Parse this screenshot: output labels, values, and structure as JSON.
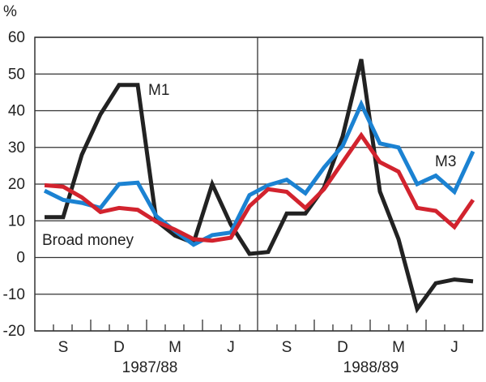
{
  "chart_data": {
    "type": "line",
    "ylabel": "%",
    "ylim": [
      -20,
      60
    ],
    "yticks": [
      60,
      50,
      40,
      30,
      20,
      10,
      0,
      -10,
      -20
    ],
    "grid": true,
    "points_per_year": 12,
    "x_tick_labels": [
      {
        "index": 1,
        "label": "S"
      },
      {
        "index": 4,
        "label": "D"
      },
      {
        "index": 7,
        "label": "M"
      },
      {
        "index": 10,
        "label": "J"
      },
      {
        "index": 13,
        "label": "S"
      },
      {
        "index": 16,
        "label": "D"
      },
      {
        "index": 19,
        "label": "M"
      },
      {
        "index": 22,
        "label": "J"
      }
    ],
    "year_labels": [
      "1987/88",
      "1988/89"
    ],
    "series": [
      {
        "name": "M1",
        "color": "#222222",
        "values": [
          11,
          11,
          28,
          39,
          47,
          47,
          10,
          6,
          4,
          20,
          9,
          1,
          1.5,
          12,
          12,
          19,
          33,
          54,
          18,
          5,
          -14,
          -7,
          -6,
          -6.5
        ]
      },
      {
        "name": "M3",
        "color": "#1b82d2",
        "values": [
          18.2,
          15.7,
          14.9,
          13.5,
          20,
          20.4,
          11.3,
          7.2,
          3.5,
          6.1,
          6.8,
          17,
          19.7,
          21.2,
          17.5,
          24.5,
          30.4,
          41.8,
          31.1,
          30,
          20,
          22.3,
          17.9,
          28.9
        ]
      },
      {
        "name": "Broad money",
        "color": "#d2232e",
        "values": [
          19.7,
          19.3,
          16.4,
          12.4,
          13.5,
          13,
          9.8,
          7.6,
          5,
          4.6,
          5.4,
          14,
          18.6,
          17.9,
          13.5,
          18.6,
          26,
          33.3,
          26,
          23.4,
          13.5,
          12.7,
          8.3,
          15.7
        ]
      }
    ]
  }
}
